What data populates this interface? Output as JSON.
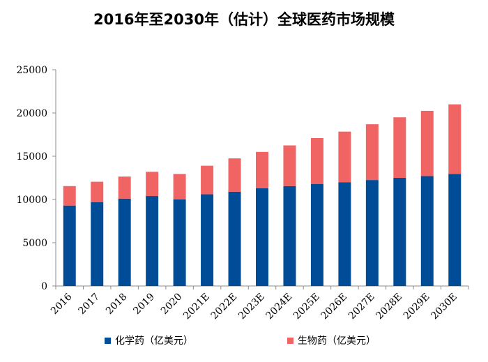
{
  "chart_data": {
    "type": "bar",
    "stacked": true,
    "title": "2016年至2030年（估计）全球医药市场规模",
    "categories": [
      "2016",
      "2017",
      "2018",
      "2019",
      "2020",
      "2021E",
      "2022E",
      "2023E",
      "2024E",
      "2025E",
      "2026E",
      "2027E",
      "2028E",
      "2029E",
      "2030E"
    ],
    "series": [
      {
        "name": "化学药（亿美元）",
        "color": "#004C97",
        "values": [
          9300,
          9700,
          10100,
          10400,
          10000,
          10600,
          10900,
          11300,
          11550,
          11800,
          12000,
          12250,
          12500,
          12700,
          12950
        ]
      },
      {
        "name": "生物药（亿美元）",
        "color": "#F06464",
        "values": [
          2250,
          2350,
          2550,
          2800,
          2950,
          3300,
          3850,
          4200,
          4700,
          5300,
          5850,
          6450,
          7000,
          7550,
          8050
        ]
      }
    ],
    "yticks": [
      "0",
      "5000",
      "10000",
      "15000",
      "20000",
      "25000"
    ],
    "ylim": [
      0,
      25000
    ],
    "grid": false,
    "legend_position": "bottom"
  }
}
